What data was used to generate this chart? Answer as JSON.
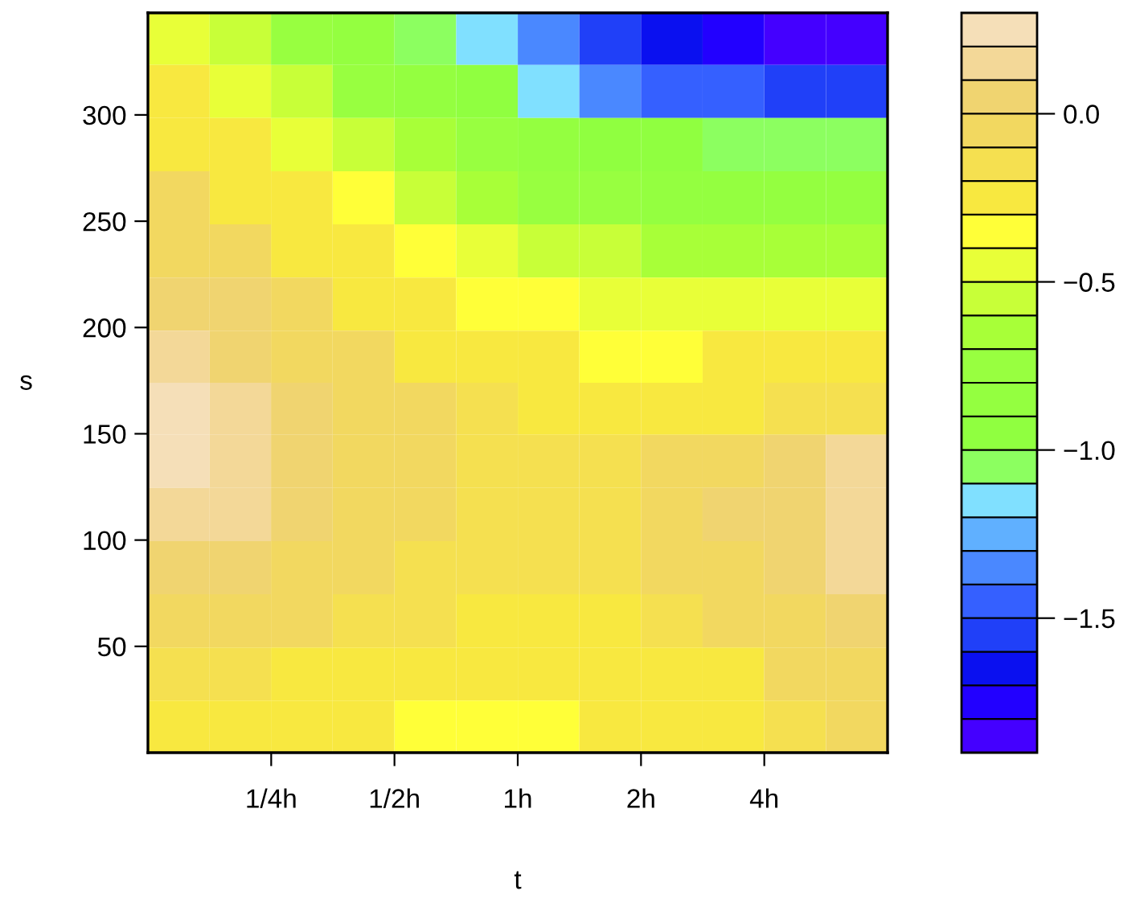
{
  "chart_data": {
    "type": "heatmap",
    "xlabel": "t",
    "ylabel": "s",
    "log": "x",
    "x": [
      0.149,
      0.21,
      0.297,
      0.42,
      0.595,
      0.841,
      1.19,
      1.68,
      2.38,
      3.36,
      4.76,
      6.73
    ],
    "y": [
      336,
      311,
      286,
      261,
      236,
      211,
      186,
      162,
      137,
      112,
      87,
      62,
      37,
      12
    ],
    "xlim": [
      0.125,
      8
    ],
    "ylim": [
      0,
      348
    ],
    "xticks": [
      {
        "value": 0.25,
        "label": "1/4h"
      },
      {
        "value": 0.5,
        "label": "1/2h"
      },
      {
        "value": 1,
        "label": "1h"
      },
      {
        "value": 2,
        "label": "2h"
      },
      {
        "value": 4,
        "label": "4h"
      }
    ],
    "yticks": [
      50,
      100,
      150,
      200,
      250,
      300
    ],
    "clim": [
      -1.9,
      0.3
    ],
    "cticks": [
      {
        "value": 0.0,
        "label": "0.0"
      },
      {
        "value": -0.5,
        "label": "−0.5"
      },
      {
        "value": -1.0,
        "label": "−1.0"
      },
      {
        "value": -1.5,
        "label": "−1.5"
      }
    ],
    "cells": [
      [
        -0.45,
        -0.6,
        -0.75,
        -0.9,
        -1.05,
        -1.2,
        -1.4,
        -1.55,
        -1.7,
        -1.75,
        -1.8,
        -1.85
      ],
      [
        -0.3,
        -0.45,
        -0.6,
        -0.75,
        -0.9,
        -1.0,
        -1.15,
        -1.3,
        -1.45,
        -1.5,
        -1.55,
        -1.55
      ],
      [
        -0.2,
        -0.3,
        -0.45,
        -0.55,
        -0.7,
        -0.8,
        -0.9,
        -0.95,
        -1.0,
        -1.05,
        -1.05,
        -1.1
      ],
      [
        -0.1,
        -0.2,
        -0.3,
        -0.4,
        -0.55,
        -0.65,
        -0.75,
        -0.8,
        -0.85,
        -0.9,
        -0.9,
        -0.9
      ],
      [
        -0.05,
        -0.1,
        -0.2,
        -0.3,
        -0.4,
        -0.5,
        -0.55,
        -0.6,
        -0.65,
        -0.65,
        -0.7,
        -0.7
      ],
      [
        0.05,
        0.0,
        -0.1,
        -0.2,
        -0.3,
        -0.35,
        -0.4,
        -0.45,
        -0.45,
        -0.45,
        -0.45,
        -0.5
      ],
      [
        0.15,
        0.05,
        -0.05,
        -0.1,
        -0.2,
        -0.25,
        -0.3,
        -0.35,
        -0.35,
        -0.3,
        -0.3,
        -0.3
      ],
      [
        0.25,
        0.15,
        0.05,
        -0.05,
        -0.1,
        -0.15,
        -0.2,
        -0.2,
        -0.2,
        -0.2,
        -0.15,
        -0.15
      ],
      [
        0.25,
        0.15,
        0.05,
        -0.05,
        -0.1,
        -0.15,
        -0.15,
        -0.15,
        -0.1,
        -0.05,
        0.05,
        0.1
      ],
      [
        0.15,
        0.1,
        0.05,
        -0.05,
        -0.1,
        -0.15,
        -0.15,
        -0.15,
        -0.1,
        0.0,
        0.05,
        0.15
      ],
      [
        0.05,
        0.0,
        -0.05,
        -0.1,
        -0.15,
        -0.15,
        -0.15,
        -0.15,
        -0.1,
        -0.05,
        0.05,
        0.1
      ],
      [
        -0.1,
        -0.1,
        -0.1,
        -0.15,
        -0.15,
        -0.2,
        -0.2,
        -0.2,
        -0.15,
        -0.1,
        -0.05,
        0.0
      ],
      [
        -0.15,
        -0.15,
        -0.2,
        -0.25,
        -0.3,
        -0.3,
        -0.3,
        -0.3,
        -0.25,
        -0.2,
        -0.1,
        -0.05
      ],
      [
        -0.2,
        -0.25,
        -0.3,
        -0.3,
        -0.35,
        -0.35,
        -0.35,
        -0.3,
        -0.3,
        -0.25,
        -0.15,
        -0.1
      ]
    ]
  }
}
